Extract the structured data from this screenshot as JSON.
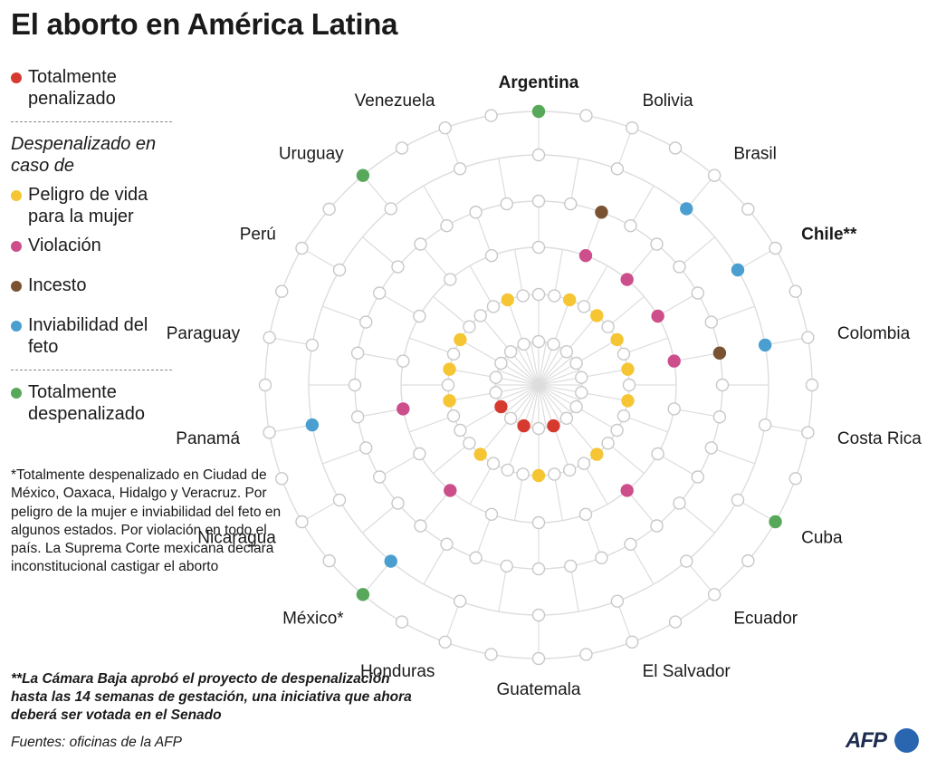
{
  "title": "El aborto en América Latina",
  "legend": {
    "total_penalized": "Totalmente penalizado",
    "subheading": "Despenalizado en caso de",
    "life_danger": "Peligro de vida para la mujer",
    "rape": "Violación",
    "incest": "Incesto",
    "fetal_unviability": "Inviabilidad del feto",
    "total_decriminalized": "Totalmente despenalizado"
  },
  "colors": {
    "total_penalized": "#d63a2f",
    "life_danger": "#f5c534",
    "rape": "#cc4f8c",
    "incest": "#7a5232",
    "fetal_unviability": "#4a9fd0",
    "total_decriminalized": "#57a85a",
    "empty": "#ffffff",
    "grid": "#dddddd"
  },
  "notes": {
    "mexico_note": "*Totalmente despenalizado en Ciudad de México, Oaxaca, Hidalgo y Veracruz. Por peligro de la mujer e inviabilidad del feto en algunos estados. Por violación en todo el país. La Suprema Corte mexicana declara inconstitucional castigar el aborto",
    "chile_note": "**La Cámara Baja aprobó el proyecto de despenalización hasta las 14 semanas de gestación, una iniciativa que ahora deberá ser votada en el Senado",
    "source": "Fuentes: oficinas de la AFP"
  },
  "logo": {
    "text": "AFP"
  },
  "chart_data": {
    "type": "radar",
    "ring_categories": [
      "total_penalized",
      "life_danger",
      "rape",
      "incest",
      "fetal_unviability",
      "total_decriminalized"
    ],
    "countries": [
      {
        "label": "Argentina",
        "bold": true,
        "status": [
          "total_decriminalized"
        ]
      },
      {
        "label": "Bolivia",
        "bold": false,
        "status": [
          "incest"
        ]
      },
      {
        "label": "Brasil",
        "bold": false,
        "status": [
          "fetal_unviability"
        ]
      },
      {
        "label": "Chile**",
        "bold": true,
        "status": [
          "fetal_unviability"
        ]
      },
      {
        "label": "Colombia",
        "bold": false,
        "status": [
          "fetal_unviability"
        ]
      },
      {
        "label": "Costa Rica",
        "bold": false,
        "status": []
      },
      {
        "label": "Cuba",
        "bold": false,
        "status": [
          "total_decriminalized"
        ]
      },
      {
        "label": "Ecuador",
        "bold": false,
        "status": []
      },
      {
        "label": "El Salvador",
        "bold": false,
        "status": []
      },
      {
        "label": "Guatemala",
        "bold": false,
        "status": []
      },
      {
        "label": "Honduras",
        "bold": false,
        "status": []
      },
      {
        "label": "México*",
        "bold": false,
        "status": [
          "total_decriminalized"
        ]
      },
      {
        "label": "Nicaragua",
        "bold": false,
        "status": []
      },
      {
        "label": "Panamá",
        "bold": false,
        "status": [
          "fetal_unviability"
        ]
      },
      {
        "label": "Paraguay",
        "bold": false,
        "status": []
      },
      {
        "label": "Perú",
        "bold": false,
        "status": []
      },
      {
        "label": "Uruguay",
        "bold": false,
        "status": [
          "total_decriminalized"
        ]
      },
      {
        "label": "Venezuela",
        "bold": false,
        "status": []
      }
    ]
  }
}
